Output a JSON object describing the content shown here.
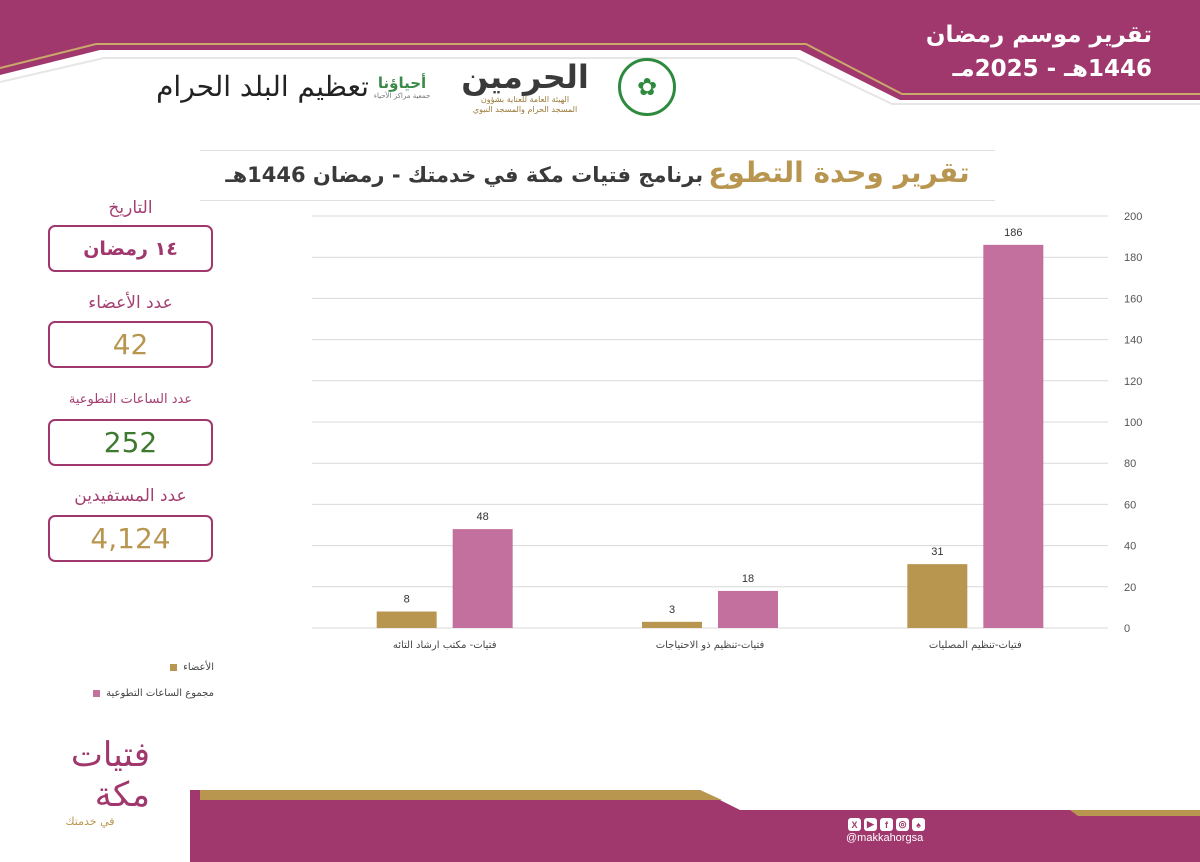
{
  "theme": {
    "primary": "#a0376d",
    "gold": "#b8964f",
    "green": "#3e7a2e",
    "series_hours_color": "#c4709f",
    "series_members_color": "#b8964f"
  },
  "header": {
    "report_title_line1": "تقرير موسم رمضان",
    "report_title_line2": "1446هـ - 2025مـ"
  },
  "logos": {
    "seal": "seal-logo",
    "haramain_main": "الحرمين",
    "haramain_sub1": "الهيئة العامة للعناية بشؤون",
    "haramain_sub2": "المسجد الحرام والمسجد النبوي",
    "ihyauna_main": "أحياؤنا",
    "ihyauna_sub": "جمعية مراكز الأحياء",
    "tazeem": "تعظيم البلد الحرام"
  },
  "title": {
    "accent": "تقرير وحدة التطوع",
    "rest": "برنامج فتيات مكة في خدمتك - رمضان 1446هـ"
  },
  "stats": {
    "date_label": "التاريخ",
    "date_value": "١٤ رمضان",
    "members_label": "عدد الأعضاء",
    "members_value": "42",
    "hours_label": "عدد الساعات التطوعية",
    "hours_value": "252",
    "beneficiaries_label": "عدد المستفيدين",
    "beneficiaries_value": "4,124"
  },
  "chart_data": {
    "type": "bar",
    "categories": [
      "فتيات-تنظيم المصليات",
      "فتيات-تنظيم ذو الاحتياجات",
      "فتيات- مكتب ارشاد التائه"
    ],
    "series": [
      {
        "name": "مجموع الساعات التطوعية",
        "values": [
          186,
          18,
          48
        ]
      },
      {
        "name": "الأعضاء",
        "values": [
          31,
          3,
          8
        ]
      }
    ],
    "ylim": [
      0,
      200
    ],
    "yticks": [
      0,
      20,
      40,
      60,
      80,
      100,
      120,
      140,
      160,
      180,
      200
    ],
    "grid": true,
    "y_axis_side": "right",
    "legend_position": "bottom-left"
  },
  "legend": {
    "members": "الأعضاء",
    "hours": "مجموع الساعات التطوعية"
  },
  "footer": {
    "logo_main": "فتيات مكة",
    "logo_sub": "في خدمتك",
    "social_icons": [
      "x-icon",
      "youtube-icon",
      "facebook-icon",
      "instagram-icon",
      "snapchat-icon"
    ],
    "handle": "@makkahorgsa"
  }
}
